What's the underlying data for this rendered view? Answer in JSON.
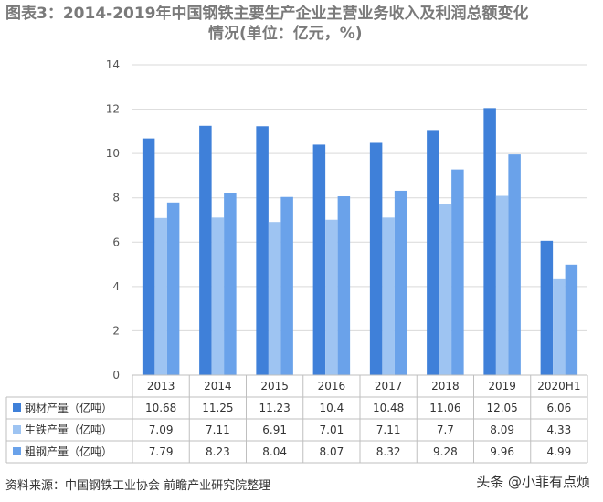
{
  "title": {
    "line1": "图表3：2014-2019年中国钢铁主要生产企业主营业务收入及利润总额变化",
    "line2": "情况(单位：亿元，%)"
  },
  "source": "资料来源：中国钢铁工业协会 前瞻产业研究院整理",
  "watermark": "头条 @小菲有点烦",
  "chart_data": {
    "type": "bar",
    "categories": [
      "2013",
      "2014",
      "2015",
      "2016",
      "2017",
      "2018",
      "2019",
      "2020H1"
    ],
    "series": [
      {
        "name": "钢材产量（亿吨）",
        "color": "#3f80d9",
        "values": [
          10.68,
          11.25,
          11.23,
          10.4,
          10.48,
          11.06,
          12.05,
          6.06
        ]
      },
      {
        "name": "生铁产量（亿吨）",
        "color": "#9ec4f2",
        "values": [
          7.09,
          7.11,
          6.91,
          7.01,
          7.11,
          7.7,
          8.09,
          4.33
        ]
      },
      {
        "name": "粗钢产量（亿吨）",
        "color": "#6aa2ea",
        "values": [
          7.79,
          8.23,
          8.04,
          8.07,
          8.32,
          9.28,
          9.96,
          4.99
        ]
      }
    ],
    "ylim": [
      0,
      14
    ],
    "yticks": [
      0,
      2,
      4,
      6,
      8,
      10,
      12,
      14
    ],
    "grid": true,
    "data_table": true
  }
}
